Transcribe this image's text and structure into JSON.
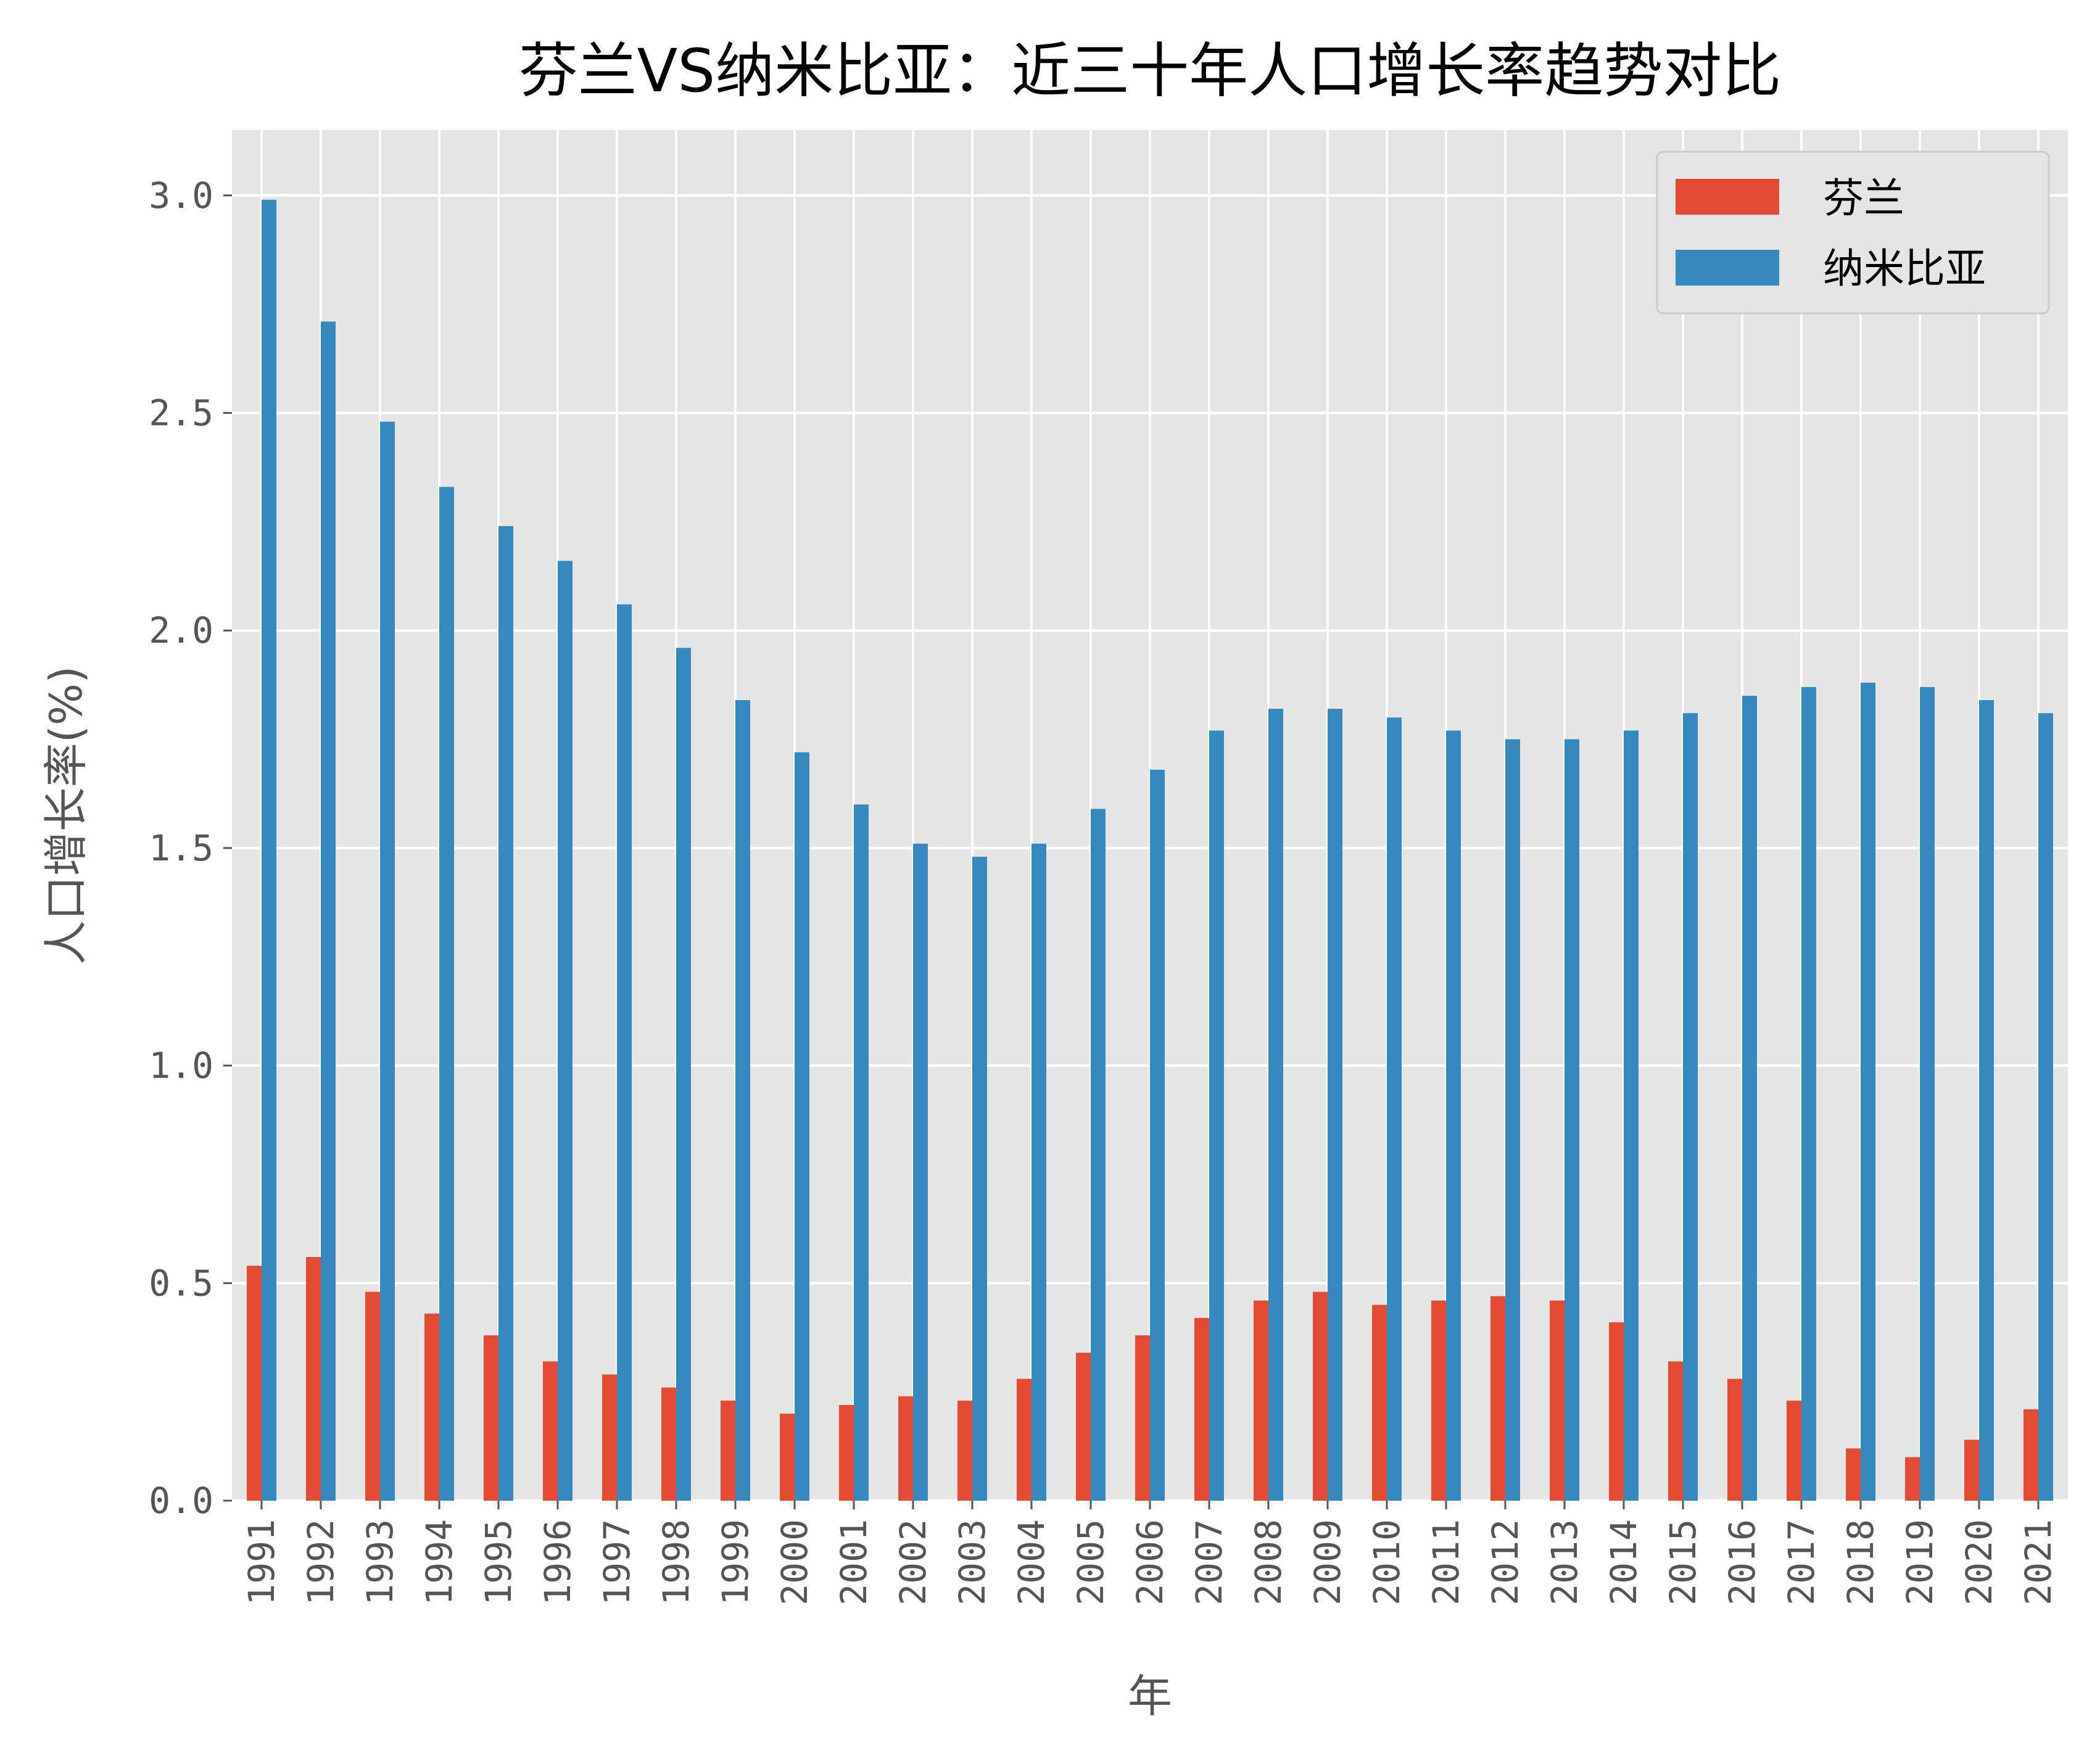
{
  "chart_data": {
    "type": "bar",
    "title": "芬兰VS纳米比亚：近三十年人口增长率趋势对比",
    "xlabel": "年",
    "ylabel": "人口增长率(%)",
    "ylim": [
      0,
      3.15
    ],
    "yticks": [
      "0.0",
      "0.5",
      "1.0",
      "1.5",
      "2.0",
      "2.5",
      "3.0"
    ],
    "grid": true,
    "legend_position": "top-right",
    "categories": [
      "1991",
      "1992",
      "1993",
      "1994",
      "1995",
      "1996",
      "1997",
      "1998",
      "1999",
      "2000",
      "2001",
      "2002",
      "2003",
      "2004",
      "2005",
      "2006",
      "2007",
      "2008",
      "2009",
      "2010",
      "2011",
      "2012",
      "2013",
      "2014",
      "2015",
      "2016",
      "2017",
      "2018",
      "2019",
      "2020",
      "2021"
    ],
    "series": [
      {
        "name": "芬兰",
        "color": "#E24A33",
        "values": [
          0.54,
          0.56,
          0.48,
          0.43,
          0.38,
          0.32,
          0.29,
          0.26,
          0.23,
          0.2,
          0.22,
          0.24,
          0.23,
          0.28,
          0.34,
          0.38,
          0.42,
          0.46,
          0.48,
          0.45,
          0.46,
          0.47,
          0.46,
          0.41,
          0.32,
          0.28,
          0.23,
          0.12,
          0.1,
          0.14,
          0.21
        ]
      },
      {
        "name": "纳米比亚",
        "color": "#348ABD",
        "values": [
          2.99,
          2.71,
          2.48,
          2.33,
          2.24,
          2.16,
          2.06,
          1.96,
          1.84,
          1.72,
          1.6,
          1.51,
          1.48,
          1.51,
          1.59,
          1.68,
          1.77,
          1.82,
          1.82,
          1.8,
          1.77,
          1.75,
          1.75,
          1.77,
          1.81,
          1.85,
          1.87,
          1.88,
          1.87,
          1.84,
          1.81
        ]
      }
    ]
  }
}
